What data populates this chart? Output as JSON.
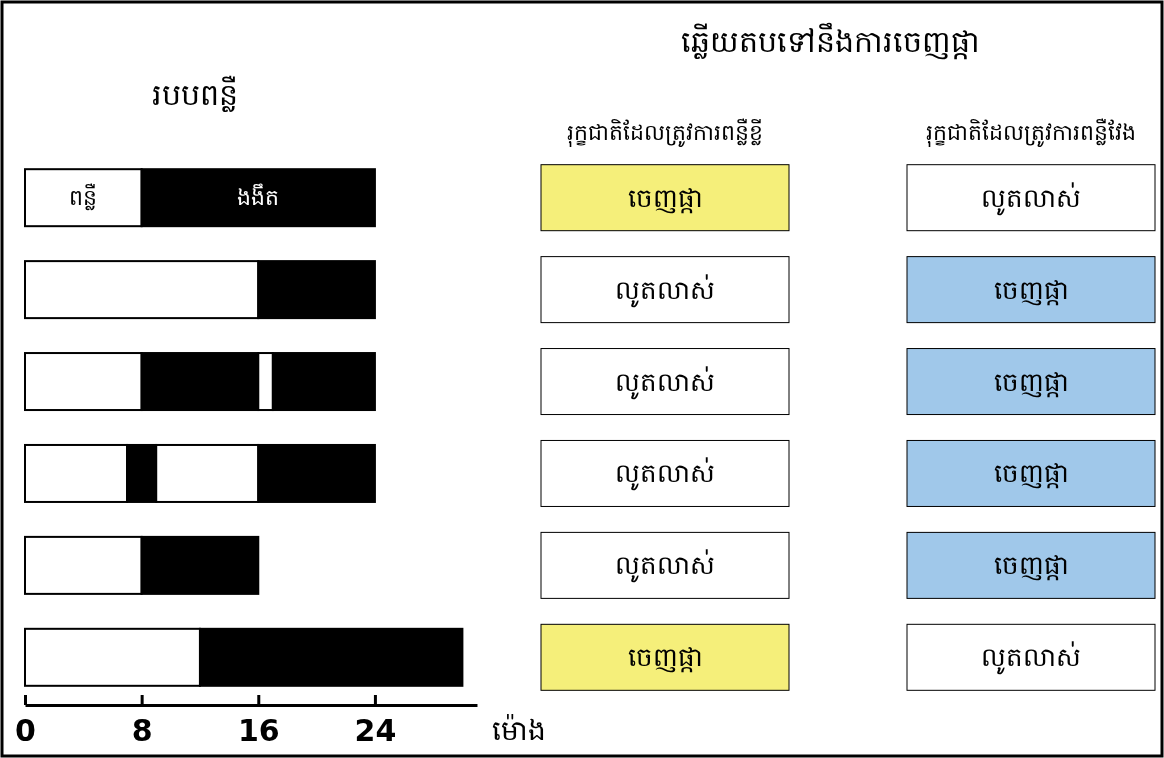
{
  "chart_data": {
    "type": "bar",
    "orientation": "horizontal",
    "stacked": true,
    "title": "របបពន្លឺ",
    "xlabel": "ម៉ោង",
    "categories": [
      null,
      null,
      null,
      null,
      null,
      null
    ],
    "series": [
      {
        "name": "ពន្លឺ",
        "color": "#ffffff",
        "values": [
          8,
          16,
          8,
          7,
          8,
          12
        ]
      },
      {
        "name": "ងងឹត",
        "color": "#000000",
        "values": [
          16,
          8,
          8,
          2,
          8,
          18
        ]
      },
      {
        "color": "#ffffff",
        "values": [
          null,
          null,
          1,
          7,
          null,
          null
        ]
      },
      {
        "color": "#000000",
        "values": [
          null,
          null,
          7,
          8,
          null,
          null
        ]
      }
    ],
    "xlim": [
      0,
      31
    ],
    "xticks": [
      0,
      8,
      16,
      24
    ],
    "annotations": [
      "ឆ្លើយតបទៅនឹងការចេញផ្កា",
      "រុក្ខជាតិដែលត្រូវការពន្លឺខ្លី",
      "រុក្ខជាតិដែលត្រូវការពន្លឺវែង",
      "ចេញផ្កា",
      "លូតលាស់",
      "លូតលាស់",
      "ចេញផ្កា",
      "លូតលាស់",
      "ចេញផ្កា",
      "លូតលាស់",
      "ចេញផ្កា",
      "លូតលាស់",
      "ចេញផ្កា",
      "ចេញផ្កា",
      "លូតលាស់"
    ]
  }
}
